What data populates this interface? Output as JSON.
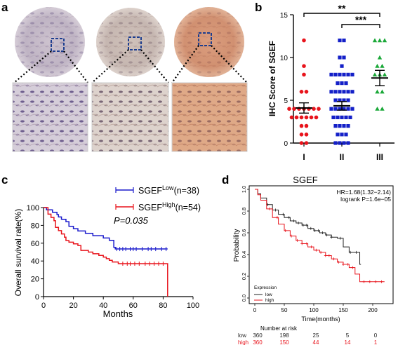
{
  "panels": {
    "a": {
      "letter": "a"
    },
    "b": {
      "letter": "b"
    },
    "c": {
      "letter": "c"
    },
    "d": {
      "letter": "d"
    }
  },
  "chart_data": [
    {
      "panel": "b",
      "type": "scatter",
      "title": "",
      "xlabel": "",
      "ylabel": "IHC Score of SGEF",
      "categories": [
        "I",
        "II",
        "III"
      ],
      "ylim": [
        0,
        15
      ],
      "yticks": [
        "0",
        "5",
        "10",
        "15"
      ],
      "colors": [
        "#e8141c",
        "#1420c8",
        "#1aa838"
      ],
      "markers": [
        "circle",
        "square",
        "triangle"
      ],
      "points": [
        [
          12,
          9,
          8,
          6,
          6,
          4,
          4,
          4,
          4,
          4,
          4,
          4,
          3,
          3,
          3,
          3,
          3,
          3,
          2,
          2,
          1,
          1,
          0,
          0
        ],
        [
          12,
          12,
          10,
          10,
          9,
          8,
          8,
          8,
          8,
          8,
          8,
          7,
          7,
          7,
          6,
          6,
          6,
          6,
          6,
          6,
          5,
          5,
          5,
          5,
          4,
          4,
          4,
          4,
          4,
          4,
          3,
          3,
          3,
          3,
          3,
          2,
          2,
          2,
          2,
          1,
          1,
          1,
          0,
          0,
          0,
          0
        ],
        [
          12,
          12,
          12,
          10,
          9,
          9,
          8,
          8,
          8,
          6,
          6,
          4,
          4
        ]
      ],
      "mean": [
        4.1,
        4.35,
        7.6
      ],
      "sem": [
        0.6,
        0.5,
        0.9
      ],
      "significance": [
        {
          "from": "I",
          "to": "III",
          "label": "**"
        },
        {
          "from": "II",
          "to": "III",
          "label": "***"
        }
      ]
    },
    {
      "panel": "c",
      "type": "line",
      "title": "",
      "xlabel": "Months",
      "ylabel": "Overall survival rate(%)",
      "xlim": [
        0,
        100
      ],
      "ylim": [
        0,
        100
      ],
      "xticks": [
        "0",
        "20",
        "40",
        "60",
        "80",
        "100"
      ],
      "yticks": [
        "0",
        "20",
        "40",
        "60",
        "80",
        "100"
      ],
      "series": [
        {
          "name": "SGEF",
          "sup": "Low",
          "suffix": "(n=38)",
          "color": "#1a1acc",
          "x": [
            0,
            2,
            6,
            9,
            10,
            12,
            15,
            17,
            20,
            23,
            28,
            33,
            40,
            44,
            47,
            48,
            60,
            83
          ],
          "y": [
            100,
            97.4,
            94.7,
            92.1,
            89.5,
            86.8,
            84.2,
            78.9,
            76.3,
            73.7,
            71.1,
            68.4,
            65.8,
            63.2,
            55.3,
            53.5,
            53.5,
            53.5
          ],
          "censor_x": [
            49,
            51,
            53,
            55,
            58,
            60,
            62,
            66,
            70,
            72,
            75,
            79,
            82
          ]
        },
        {
          "name": "SGEF",
          "sup": "High",
          "suffix": "(n=54)",
          "color": "#e8141c",
          "x": [
            0,
            3,
            5,
            7,
            8,
            10,
            12,
            14,
            15,
            17,
            20,
            23,
            25,
            30,
            33,
            37,
            40,
            42,
            44,
            46,
            50,
            52,
            83,
            83
          ],
          "y": [
            100,
            92.6,
            88.9,
            85.2,
            77.8,
            74.1,
            70.4,
            66.7,
            63,
            61.1,
            59.3,
            57.4,
            51.9,
            50,
            48.1,
            46.3,
            44.4,
            42.6,
            40.7,
            38.9,
            37,
            37,
            37,
            0
          ],
          "censor_x": [
            53,
            56,
            58,
            61,
            64,
            68,
            71,
            74,
            77,
            80
          ]
        }
      ],
      "annotation": "P=0.035"
    },
    {
      "panel": "d",
      "type": "line",
      "title": "SGEF",
      "xlabel": "Time(months)",
      "ylabel": "Probability",
      "xlim": [
        0,
        225
      ],
      "ylim": [
        0,
        1
      ],
      "xticks": [
        "0",
        "50",
        "100",
        "150",
        "200"
      ],
      "yticks": [
        "0.0",
        "0.2",
        "0.4",
        "0.6",
        "0.8",
        "1.0"
      ],
      "annotations": [
        "HR=1.68(1.32−2.14)",
        "logrank P=1.6e−05"
      ],
      "legend_title": "Expression",
      "series": [
        {
          "name": "low",
          "color": "#222222",
          "x": [
            0,
            5,
            10,
            20,
            30,
            40,
            50,
            60,
            70,
            80,
            90,
            100,
            110,
            120,
            130,
            140,
            150,
            160,
            170,
            175,
            178,
            180
          ],
          "y": [
            1.0,
            0.96,
            0.92,
            0.86,
            0.81,
            0.77,
            0.74,
            0.71,
            0.69,
            0.67,
            0.64,
            0.62,
            0.6,
            0.58,
            0.56,
            0.55,
            0.47,
            0.42,
            0.42,
            0.42,
            0.31,
            0.31
          ],
          "censor_x": [
            22,
            35,
            48,
            58,
            66,
            74,
            82,
            88,
            95,
            102,
            108,
            115,
            122,
            130,
            145,
            162,
            172
          ]
        },
        {
          "name": "high",
          "color": "#e8141c",
          "x": [
            0,
            5,
            10,
            20,
            30,
            40,
            50,
            60,
            70,
            80,
            90,
            100,
            110,
            120,
            130,
            140,
            150,
            160,
            170,
            175,
            178,
            220
          ],
          "y": [
            1.0,
            0.95,
            0.9,
            0.82,
            0.74,
            0.68,
            0.62,
            0.57,
            0.53,
            0.5,
            0.47,
            0.44,
            0.42,
            0.39,
            0.36,
            0.33,
            0.31,
            0.28,
            0.22,
            0.22,
            0.15,
            0.15
          ],
          "censor_x": [
            25,
            38,
            52,
            62,
            72,
            80,
            88,
            96,
            104,
            112,
            120,
            126,
            134,
            142,
            150,
            158,
            166,
            185,
            195,
            205,
            215
          ]
        }
      ],
      "risk_table": {
        "header": "Number at risk",
        "rows": [
          {
            "label": "low",
            "color": "#222222",
            "values": [
              "360",
              "198",
              "25",
              "5",
              "0"
            ]
          },
          {
            "label": "high",
            "color": "#e8141c",
            "values": [
              "360",
              "150",
              "44",
              "14",
              "1"
            ]
          }
        ]
      }
    }
  ]
}
